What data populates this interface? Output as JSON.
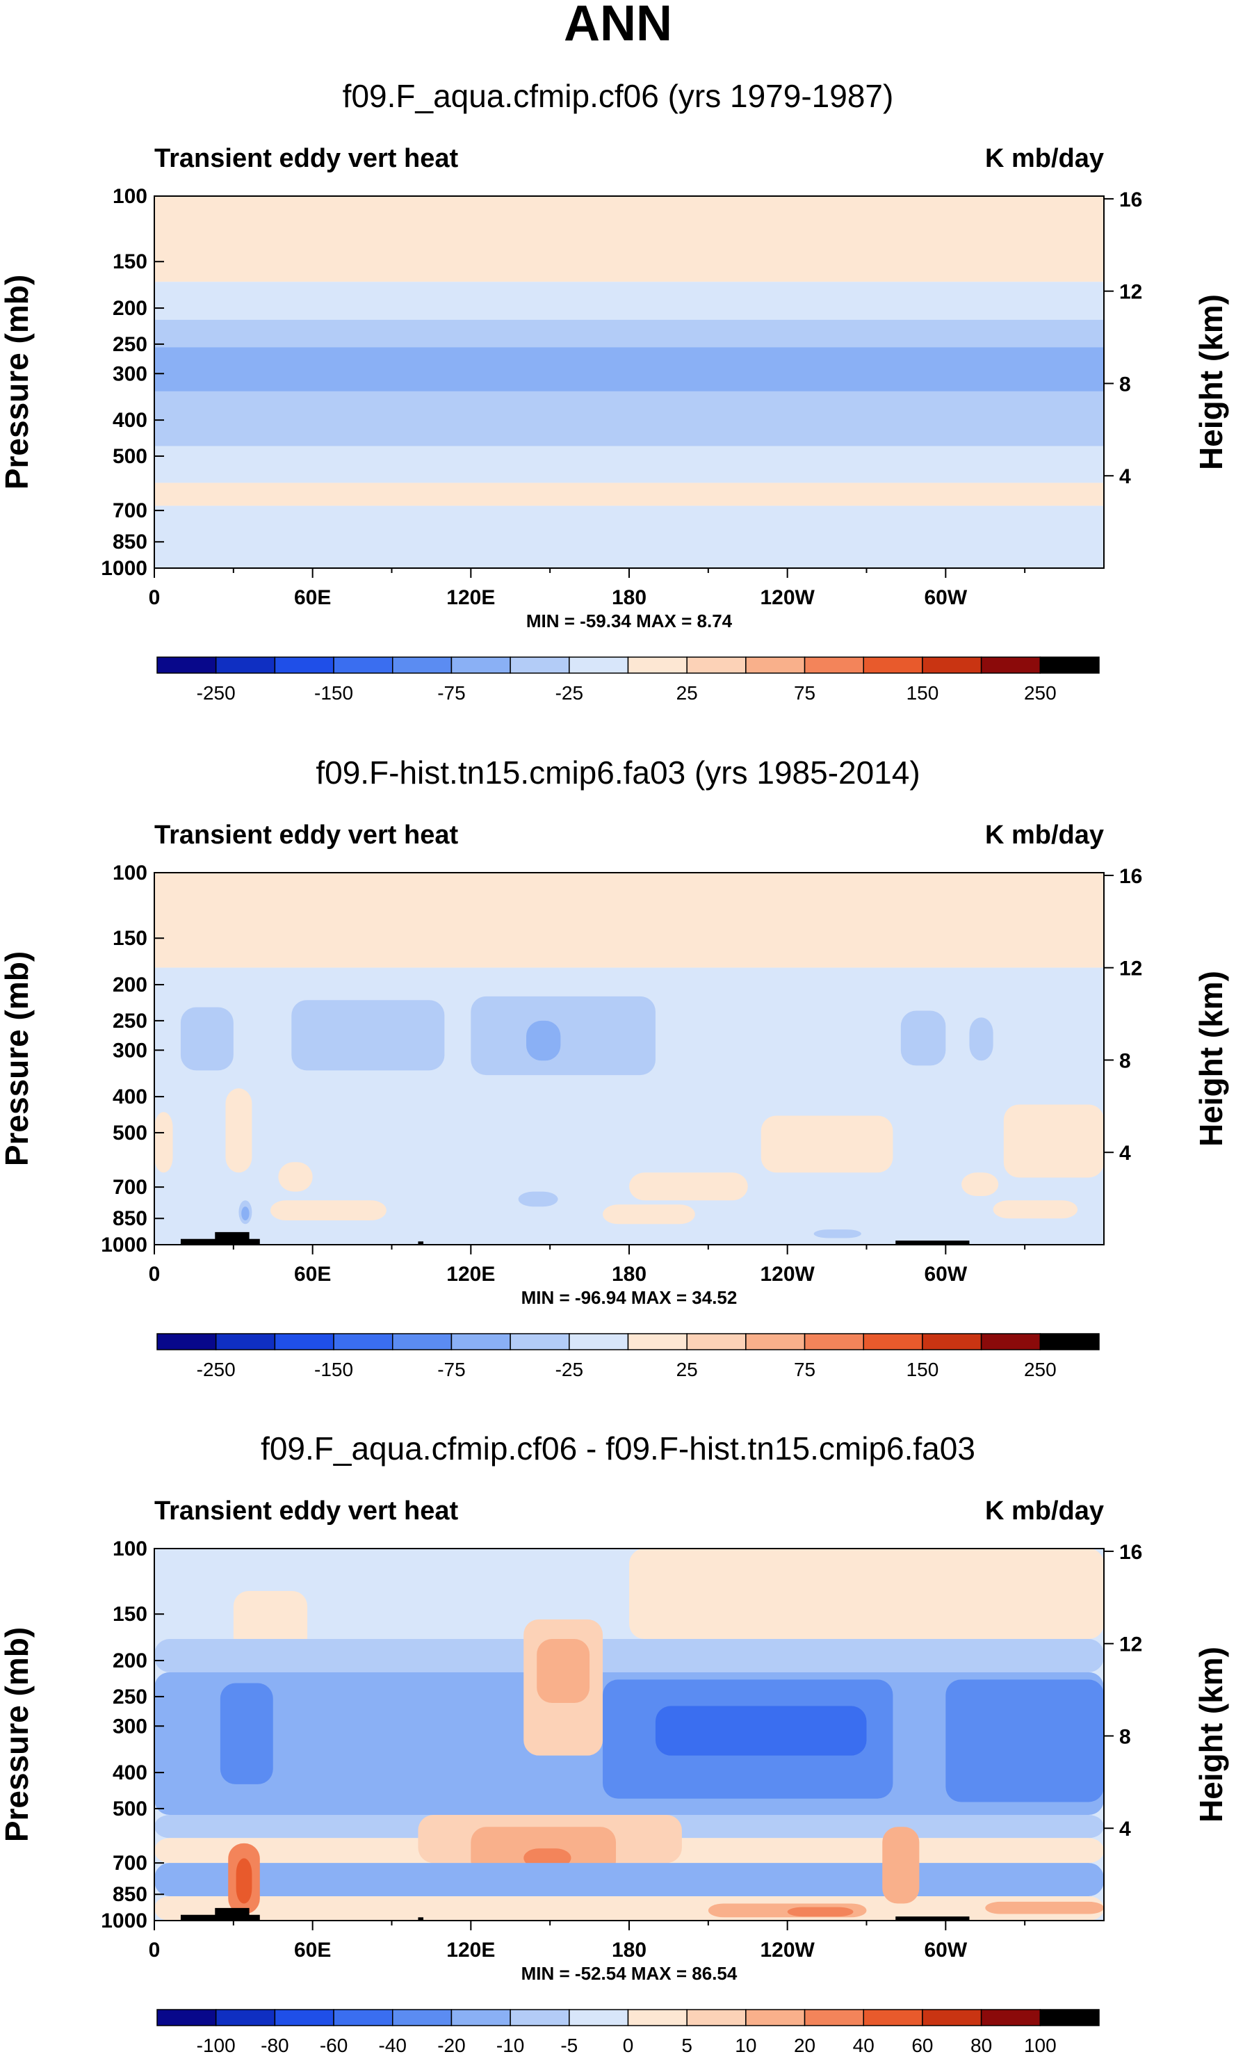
{
  "figure": {
    "title": "ANN"
  },
  "palettes": {
    "diverging14": [
      "#08088b",
      "#0f2fc2",
      "#1f4fe8",
      "#3a6ef0",
      "#5b8cf2",
      "#8ab0f5",
      "#b3ccf7",
      "#d8e6fa",
      "#fde7d3",
      "#fcd2b7",
      "#f9b08b",
      "#f3845a",
      "#e85a2c",
      "#c93412",
      "#8b0a0a"
    ]
  },
  "colors": {
    "terrain": "#000000",
    "frame": "#000000"
  },
  "chart_data": [
    {
      "type": "contour",
      "title": "f09.F_aqua.cfmip.cf06 (yrs 1979-1987)",
      "left_label": "Transient eddy vert heat",
      "right_label": "K mb/day",
      "xlabel": "",
      "ylabel": "Pressure (mb)",
      "ylabel_right": "Height (km)",
      "x_ticks": [
        "0",
        "60E",
        "120E",
        "180",
        "120W",
        "60W"
      ],
      "x_range_deg": [
        0,
        360
      ],
      "y_ticks": [
        "100",
        "150",
        "200",
        "250",
        "300",
        "400",
        "500",
        "700",
        "850",
        "1000"
      ],
      "y_tick_values": [
        100,
        150,
        200,
        250,
        300,
        400,
        500,
        700,
        850,
        1000
      ],
      "y_range_mb": [
        100,
        1000
      ],
      "y_right_ticks": [
        "16",
        "12",
        "8",
        "4"
      ],
      "y_right_values": [
        16,
        12,
        8,
        4
      ],
      "min_max_text": "MIN = -59.34  MAX =   8.74",
      "min": -59.34,
      "max": 8.74,
      "colorbar": {
        "levels": [
          -300,
          -250,
          -200,
          -150,
          -100,
          -75,
          -50,
          -25,
          0,
          25,
          50,
          75,
          100,
          150,
          200,
          250,
          300
        ],
        "tick_labels": [
          "-250",
          "-150",
          "-75",
          "-25",
          "25",
          "75",
          "150",
          "250"
        ]
      },
      "regions": [
        {
          "p_top": 100,
          "p_bot": 170,
          "value": 5
        },
        {
          "p_top": 170,
          "p_bot": 215,
          "value": -10
        },
        {
          "p_top": 215,
          "p_bot": 255,
          "value": -30
        },
        {
          "p_top": 255,
          "p_bot": 335,
          "value": -55
        },
        {
          "p_top": 335,
          "p_bot": 470,
          "value": -30
        },
        {
          "p_top": 470,
          "p_bot": 590,
          "value": -10
        },
        {
          "p_top": 590,
          "p_bot": 680,
          "value": 5
        },
        {
          "p_top": 680,
          "p_bot": 1000,
          "value": -10
        }
      ],
      "terrain": []
    },
    {
      "type": "contour",
      "title": "f09.F-hist.tn15.cmip6.fa03 (yrs 1985-2014)",
      "left_label": "Transient eddy vert heat",
      "right_label": "K mb/day",
      "xlabel": "",
      "ylabel": "Pressure (mb)",
      "ylabel_right": "Height (km)",
      "x_ticks": [
        "0",
        "60E",
        "120E",
        "180",
        "120W",
        "60W"
      ],
      "x_range_deg": [
        0,
        360
      ],
      "y_ticks": [
        "100",
        "150",
        "200",
        "250",
        "300",
        "400",
        "500",
        "700",
        "850",
        "1000"
      ],
      "y_tick_values": [
        100,
        150,
        200,
        250,
        300,
        400,
        500,
        700,
        850,
        1000
      ],
      "y_range_mb": [
        100,
        1000
      ],
      "y_right_ticks": [
        "16",
        "12",
        "8",
        "4"
      ],
      "y_right_values": [
        16,
        12,
        8,
        4
      ],
      "min_max_text": "MIN = -96.94  MAX =  34.52",
      "min": -96.94,
      "max": 34.52,
      "colorbar": {
        "levels": [
          -300,
          -250,
          -200,
          -150,
          -100,
          -75,
          -50,
          -25,
          0,
          25,
          50,
          75,
          100,
          150,
          200,
          250,
          300
        ],
        "tick_labels": [
          "-250",
          "-150",
          "-75",
          "-25",
          "25",
          "75",
          "150",
          "250"
        ]
      },
      "regions": [
        {
          "p_top": 100,
          "p_bot": 180,
          "value": 5
        },
        {
          "p_top": 180,
          "p_bot": 1000,
          "value": -10
        },
        {
          "lon0": 10,
          "lon1": 30,
          "p_top": 230,
          "p_bot": 340,
          "value": -30
        },
        {
          "lon0": 52,
          "lon1": 110,
          "p_top": 220,
          "p_bot": 340,
          "value": -30
        },
        {
          "lon0": 120,
          "lon1": 190,
          "p_top": 215,
          "p_bot": 350,
          "value": -30
        },
        {
          "lon0": 141,
          "lon1": 154,
          "p_top": 250,
          "p_bot": 320,
          "value": -55
        },
        {
          "lon0": 283,
          "lon1": 300,
          "p_top": 235,
          "p_bot": 330,
          "value": -30
        },
        {
          "lon0": 309,
          "lon1": 318,
          "p_top": 245,
          "p_bot": 320,
          "value": -30
        },
        {
          "lon0": 0,
          "lon1": 7,
          "p_top": 440,
          "p_bot": 640,
          "value": 5
        },
        {
          "lon0": 27,
          "lon1": 37,
          "p_top": 380,
          "p_bot": 640,
          "value": 5
        },
        {
          "lon0": 47,
          "lon1": 60,
          "p_top": 600,
          "p_bot": 720,
          "value": 5
        },
        {
          "lon0": 44,
          "lon1": 88,
          "p_top": 760,
          "p_bot": 860,
          "value": 5
        },
        {
          "lon0": 180,
          "lon1": 225,
          "p_top": 640,
          "p_bot": 760,
          "value": 5
        },
        {
          "lon0": 230,
          "lon1": 280,
          "p_top": 450,
          "p_bot": 640,
          "value": 5
        },
        {
          "lon0": 322,
          "lon1": 360,
          "p_top": 420,
          "p_bot": 660,
          "value": 5
        },
        {
          "lon0": 306,
          "lon1": 320,
          "p_top": 640,
          "p_bot": 740,
          "value": 5
        },
        {
          "lon0": 318,
          "lon1": 350,
          "p_top": 760,
          "p_bot": 850,
          "value": 5
        },
        {
          "lon0": 170,
          "lon1": 205,
          "p_top": 780,
          "p_bot": 880,
          "value": 5
        },
        {
          "lon0": 138,
          "lon1": 153,
          "p_top": 720,
          "p_bot": 790,
          "value": -30
        },
        {
          "lon0": 32,
          "lon1": 37,
          "p_top": 760,
          "p_bot": 880,
          "value": -30
        },
        {
          "lon0": 33,
          "lon1": 36,
          "p_top": 790,
          "p_bot": 860,
          "value": -55
        },
        {
          "lon0": 250,
          "lon1": 268,
          "p_top": 910,
          "p_bot": 960,
          "value": -30
        }
      ],
      "terrain": [
        {
          "lon0": 10,
          "lon1": 40,
          "p_top": 965
        },
        {
          "lon0": 23,
          "lon1": 36,
          "p_top": 925
        },
        {
          "lon0": 100,
          "lon1": 102,
          "p_top": 980
        },
        {
          "lon0": 281,
          "lon1": 309,
          "p_top": 975
        }
      ]
    },
    {
      "type": "contour",
      "title": "f09.F_aqua.cfmip.cf06 - f09.F-hist.tn15.cmip6.fa03",
      "left_label": "Transient eddy vert heat",
      "right_label": "K mb/day",
      "xlabel": "",
      "ylabel": "Pressure (mb)",
      "ylabel_right": "Height (km)",
      "x_ticks": [
        "0",
        "60E",
        "120E",
        "180",
        "120W",
        "60W"
      ],
      "x_range_deg": [
        0,
        360
      ],
      "y_ticks": [
        "100",
        "150",
        "200",
        "250",
        "300",
        "400",
        "500",
        "700",
        "850",
        "1000"
      ],
      "y_tick_values": [
        100,
        150,
        200,
        250,
        300,
        400,
        500,
        700,
        850,
        1000
      ],
      "y_range_mb": [
        100,
        1000
      ],
      "y_right_ticks": [
        "16",
        "12",
        "8",
        "4"
      ],
      "y_right_values": [
        16,
        12,
        8,
        4
      ],
      "min_max_text": "MIN = -52.54  MAX =  86.54",
      "min": -52.54,
      "max": 86.54,
      "colorbar": {
        "levels": [
          -120,
          -100,
          -80,
          -60,
          -40,
          -20,
          -10,
          -5,
          0,
          5,
          10,
          20,
          40,
          60,
          80,
          100,
          120
        ],
        "tick_labels": [
          "-100",
          "-80",
          "-60",
          "-40",
          "-20",
          "-10",
          "-5",
          "0",
          "5",
          "10",
          "20",
          "40",
          "60",
          "80",
          "100"
        ]
      },
      "regions": [
        {
          "p_top": 100,
          "p_bot": 1000,
          "value": -2
        },
        {
          "lon0": 180,
          "lon1": 360,
          "p_top": 100,
          "p_bot": 175,
          "value": 2
        },
        {
          "lon0": 30,
          "lon1": 58,
          "p_top": 130,
          "p_bot": 190,
          "value": 2
        },
        {
          "lon0": 0,
          "lon1": 360,
          "p_top": 175,
          "p_bot": 215,
          "value": -7
        },
        {
          "lon0": 0,
          "lon1": 360,
          "p_top": 215,
          "p_bot": 520,
          "value": -15
        },
        {
          "lon0": 140,
          "lon1": 170,
          "p_top": 155,
          "p_bot": 360,
          "value": 7
        },
        {
          "lon0": 145,
          "lon1": 165,
          "p_top": 175,
          "p_bot": 260,
          "value": 15
        },
        {
          "lon0": 170,
          "lon1": 280,
          "p_top": 225,
          "p_bot": 470,
          "value": -30
        },
        {
          "lon0": 190,
          "lon1": 270,
          "p_top": 265,
          "p_bot": 360,
          "value": -50
        },
        {
          "lon0": 300,
          "lon1": 360,
          "p_top": 225,
          "p_bot": 480,
          "value": -30
        },
        {
          "lon0": 25,
          "lon1": 45,
          "p_top": 230,
          "p_bot": 430,
          "value": -30
        },
        {
          "lon0": 0,
          "lon1": 360,
          "p_top": 520,
          "p_bot": 600,
          "value": -7
        },
        {
          "lon0": 0,
          "lon1": 360,
          "p_top": 600,
          "p_bot": 700,
          "value": 3
        },
        {
          "lon0": 100,
          "lon1": 200,
          "p_top": 520,
          "p_bot": 700,
          "value": 7
        },
        {
          "lon0": 120,
          "lon1": 175,
          "p_top": 560,
          "p_bot": 760,
          "value": 15
        },
        {
          "lon0": 140,
          "lon1": 158,
          "p_top": 640,
          "p_bot": 720,
          "value": 30
        },
        {
          "lon0": 0,
          "lon1": 360,
          "p_top": 700,
          "p_bot": 860,
          "value": -15
        },
        {
          "lon0": 0,
          "lon1": 360,
          "p_top": 860,
          "p_bot": 1000,
          "value": 3
        },
        {
          "lon0": 28,
          "lon1": 40,
          "p_top": 620,
          "p_bot": 960,
          "value": 30
        },
        {
          "lon0": 31,
          "lon1": 37,
          "p_top": 680,
          "p_bot": 900,
          "value": 50
        },
        {
          "lon0": 276,
          "lon1": 290,
          "p_top": 560,
          "p_bot": 900,
          "value": 15
        },
        {
          "lon0": 210,
          "lon1": 270,
          "p_top": 900,
          "p_bot": 980,
          "value": 15
        },
        {
          "lon0": 240,
          "lon1": 265,
          "p_top": 920,
          "p_bot": 975,
          "value": 30
        },
        {
          "lon0": 315,
          "lon1": 360,
          "p_top": 890,
          "p_bot": 960,
          "value": 15
        }
      ],
      "terrain": [
        {
          "lon0": 10,
          "lon1": 40,
          "p_top": 965
        },
        {
          "lon0": 23,
          "lon1": 36,
          "p_top": 925
        },
        {
          "lon0": 100,
          "lon1": 102,
          "p_top": 980
        },
        {
          "lon0": 281,
          "lon1": 309,
          "p_top": 975
        }
      ]
    }
  ]
}
